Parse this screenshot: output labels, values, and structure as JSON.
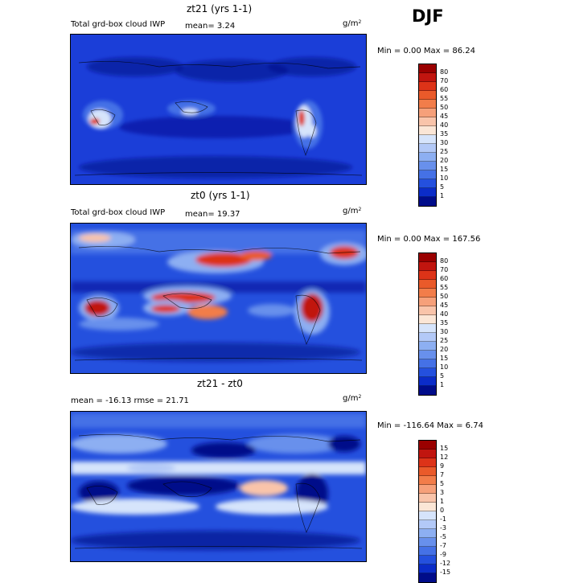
{
  "season": "DJF",
  "units_base": "g/m",
  "units_exp": "2",
  "panels": [
    {
      "title": "zt21 (yrs 1-1)",
      "field": "Total grd-box cloud IWP",
      "stat": "mean=   3.24",
      "minmax": "Min =    0.00 Max =   86.24",
      "levels": [
        "80",
        "70",
        "60",
        "55",
        "50",
        "45",
        "40",
        "35",
        "30",
        "25",
        "20",
        "15",
        "10",
        "5",
        "1"
      ],
      "colors": [
        "#9a0000",
        "#c1150f",
        "#dd3318",
        "#ea5a2a",
        "#f27d4a",
        "#f6a07a",
        "#f9c4aa",
        "#fbe6d6",
        "#d6e4fb",
        "#b3c9f7",
        "#8daff2",
        "#6890ec",
        "#4571e6",
        "#2450de",
        "#0b2cc8",
        "#000c8a"
      ]
    },
    {
      "title": "zt0 (yrs 1-1)",
      "field": "Total grd-box cloud IWP",
      "stat": "mean=   19.37",
      "minmax": "Min =    0.00 Max = 167.56",
      "levels": [
        "80",
        "70",
        "60",
        "55",
        "50",
        "45",
        "40",
        "35",
        "30",
        "25",
        "20",
        "15",
        "10",
        "5",
        "1"
      ],
      "colors": [
        "#9a0000",
        "#c1150f",
        "#dd3318",
        "#ea5a2a",
        "#f27d4a",
        "#f6a07a",
        "#f9c4aa",
        "#fbe6d6",
        "#d6e4fb",
        "#b3c9f7",
        "#8daff2",
        "#6890ec",
        "#4571e6",
        "#2450de",
        "#0b2cc8",
        "#000c8a"
      ]
    },
    {
      "title": "zt21 - zt0",
      "field": "",
      "stat": "mean = -16.13         rmse =  21.71",
      "minmax": "Min = -116.64 Max =   6.74",
      "levels": [
        "15",
        "12",
        "9",
        "7",
        "5",
        "3",
        "1",
        "0",
        "-1",
        "-3",
        "-5",
        "-7",
        "-9",
        "-12",
        "-15"
      ],
      "colors": [
        "#9a0000",
        "#c1150f",
        "#dd3318",
        "#ea5a2a",
        "#f27d4a",
        "#f6a07a",
        "#f9c4aa",
        "#fbe6d6",
        "#d6e4fb",
        "#b3c9f7",
        "#8daff2",
        "#6890ec",
        "#4571e6",
        "#2450de",
        "#0b2cc8",
        "#000c8a"
      ]
    }
  ]
}
